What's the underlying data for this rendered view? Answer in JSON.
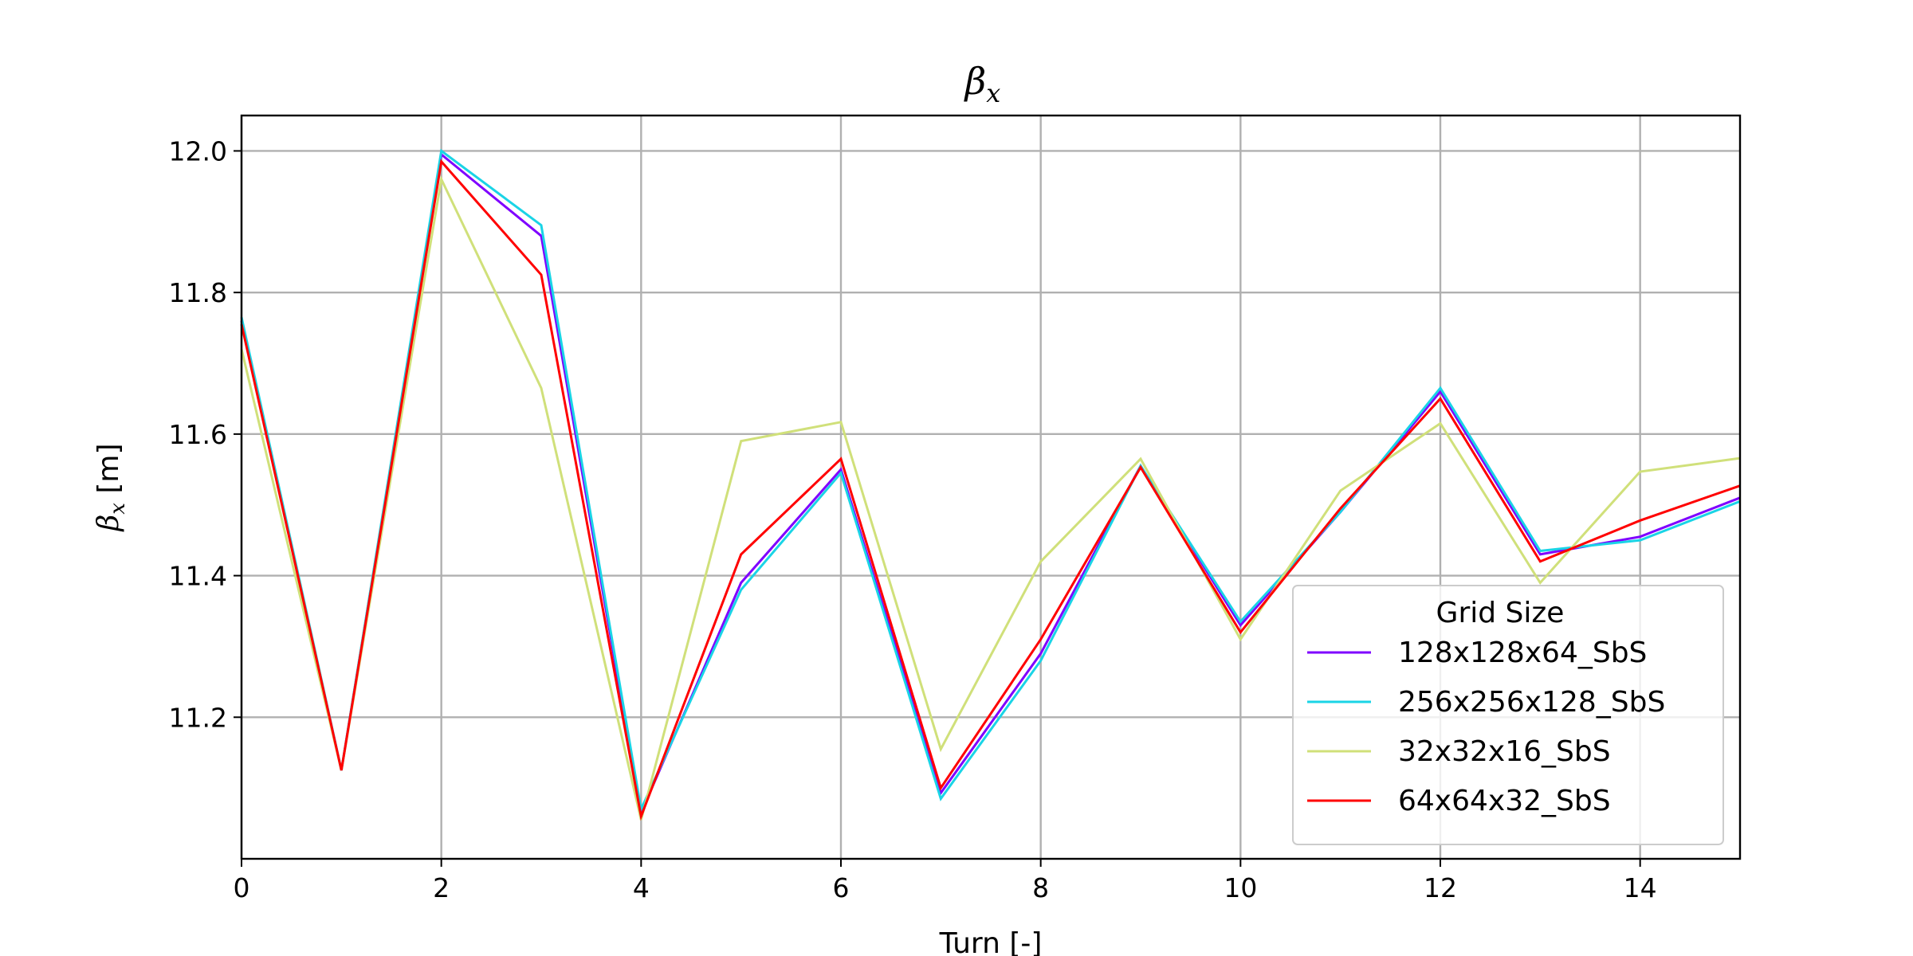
{
  "chart_data": {
    "type": "line",
    "title": "βx",
    "title_base": "β",
    "title_sub": "x",
    "xlabel": "Turn [-]",
    "ylabel_base": "β",
    "ylabel_sub": "x",
    "ylabel_suffix": " [m]",
    "xlim": [
      0,
      15
    ],
    "ylim": [
      11.0,
      12.05
    ],
    "xticks": [
      0,
      2,
      4,
      6,
      8,
      10,
      12,
      14
    ],
    "yticks": [
      11.2,
      11.4,
      11.6,
      11.8,
      12.0
    ],
    "ytick_labels": [
      "11.2",
      "11.4",
      "11.6",
      "11.8",
      "12.0"
    ],
    "grid": true,
    "legend": {
      "title": "Grid Size",
      "placement": "lower-right"
    },
    "x": [
      0,
      1,
      2,
      3,
      4,
      5,
      6,
      7,
      8,
      9,
      10,
      11,
      12,
      13,
      14,
      15
    ],
    "series": [
      {
        "name": "128x128x64_SbS",
        "color": "#7f00ff",
        "values": [
          11.76,
          11.125,
          11.995,
          11.88,
          11.065,
          11.39,
          11.55,
          11.093,
          11.29,
          11.555,
          11.33,
          11.49,
          11.66,
          11.43,
          11.455,
          11.51
        ]
      },
      {
        "name": "256x256x128_SbS",
        "color": "#1ad4e6",
        "values": [
          11.765,
          11.125,
          12.0,
          11.895,
          11.07,
          11.38,
          11.545,
          11.085,
          11.28,
          11.555,
          11.335,
          11.49,
          11.665,
          11.435,
          11.45,
          11.505
        ]
      },
      {
        "name": "32x32x16_SbS",
        "color": "#d0e07a",
        "values": [
          11.72,
          11.125,
          11.96,
          11.665,
          11.055,
          11.59,
          11.617,
          11.155,
          11.42,
          11.565,
          11.31,
          11.52,
          11.615,
          11.39,
          11.547,
          11.566
        ]
      },
      {
        "name": "64x64x32_SbS",
        "color": "#ff0000",
        "values": [
          11.755,
          11.125,
          11.985,
          11.825,
          11.06,
          11.43,
          11.565,
          11.1,
          11.31,
          11.553,
          11.32,
          11.495,
          11.65,
          11.42,
          11.478,
          11.527
        ]
      }
    ]
  }
}
